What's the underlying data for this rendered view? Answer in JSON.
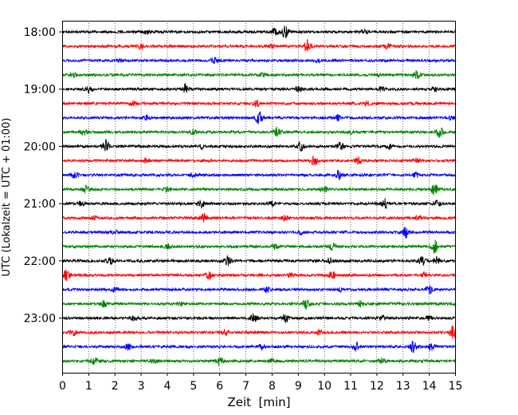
{
  "chart_data": {
    "type": "line",
    "title": "",
    "xlabel": "Zeit  [min]",
    "ylabel": "UTC (Lokalzeit = UTC + 01:00)",
    "xlim": [
      0,
      15
    ],
    "x_ticks": [
      "0",
      "1",
      "2",
      "3",
      "4",
      "5",
      "6",
      "7",
      "8",
      "9",
      "10",
      "11",
      "12",
      "13",
      "14",
      "15"
    ],
    "y_tick_labels": [
      "18:00",
      "19:00",
      "20:00",
      "21:00",
      "22:00",
      "23:00"
    ],
    "grid": "vertical dotted",
    "trace_colors": [
      "#000000",
      "#ff0000",
      "#0000ff",
      "#008000"
    ],
    "traces": [
      {
        "start": "18:00",
        "events": [
          [
            8.1,
            0.5
          ],
          [
            8.5,
            0.9
          ],
          [
            3.2,
            0.3
          ],
          [
            11.5,
            0.3
          ]
        ]
      },
      {
        "start": "18:15",
        "events": [
          [
            9.35,
            1.0
          ],
          [
            3.0,
            0.35
          ],
          [
            8.0,
            0.3
          ],
          [
            12.4,
            0.3
          ]
        ]
      },
      {
        "start": "18:30",
        "events": [
          [
            5.8,
            0.5
          ],
          [
            9.8,
            0.3
          ],
          [
            2.2,
            0.2
          ]
        ]
      },
      {
        "start": "18:45",
        "events": [
          [
            13.5,
            0.7
          ],
          [
            0.4,
            0.3
          ],
          [
            7.6,
            0.3
          ],
          [
            12.0,
            0.25
          ]
        ]
      },
      {
        "start": "19:00",
        "events": [
          [
            4.7,
            0.8
          ],
          [
            1.0,
            0.5
          ],
          [
            9.0,
            0.4
          ],
          [
            12.2,
            0.35
          ],
          [
            14.2,
            0.3
          ]
        ]
      },
      {
        "start": "19:15",
        "events": [
          [
            7.4,
            0.5
          ],
          [
            11.6,
            0.35
          ],
          [
            2.7,
            0.3
          ]
        ]
      },
      {
        "start": "19:30",
        "events": [
          [
            7.5,
            1.0
          ],
          [
            3.2,
            0.4
          ],
          [
            10.5,
            0.4
          ],
          [
            14.8,
            0.3
          ]
        ]
      },
      {
        "start": "19:45",
        "events": [
          [
            8.2,
            0.8
          ],
          [
            14.4,
            0.8
          ],
          [
            0.8,
            0.6
          ],
          [
            5.0,
            0.35
          ],
          [
            11.0,
            0.3
          ]
        ]
      },
      {
        "start": "20:00",
        "events": [
          [
            1.65,
            1.0
          ],
          [
            9.1,
            0.7
          ],
          [
            10.6,
            0.6
          ],
          [
            5.3,
            0.3
          ],
          [
            12.5,
            0.3
          ]
        ]
      },
      {
        "start": "20:15",
        "events": [
          [
            9.6,
            0.7
          ],
          [
            11.3,
            0.5
          ],
          [
            3.2,
            0.3
          ],
          [
            13.5,
            0.3
          ]
        ]
      },
      {
        "start": "20:30",
        "events": [
          [
            10.55,
            0.9
          ],
          [
            0.45,
            0.5
          ],
          [
            5.0,
            0.3
          ],
          [
            13.5,
            0.4
          ]
        ]
      },
      {
        "start": "20:45",
        "events": [
          [
            14.2,
            0.8
          ],
          [
            0.9,
            0.5
          ],
          [
            10.0,
            0.5
          ],
          [
            4.0,
            0.35
          ]
        ]
      },
      {
        "start": "21:00",
        "events": [
          [
            12.3,
            0.7
          ],
          [
            5.3,
            0.6
          ],
          [
            8.0,
            0.4
          ],
          [
            0.7,
            0.3
          ],
          [
            14.3,
            0.4
          ]
        ]
      },
      {
        "start": "21:15",
        "events": [
          [
            5.4,
            0.7
          ],
          [
            8.5,
            0.4
          ],
          [
            1.2,
            0.3
          ],
          [
            13.6,
            0.3
          ]
        ]
      },
      {
        "start": "21:30",
        "events": [
          [
            13.1,
            0.8
          ],
          [
            9.1,
            0.3
          ],
          [
            2.0,
            0.25
          ]
        ]
      },
      {
        "start": "21:45",
        "events": [
          [
            14.2,
            1.0
          ],
          [
            10.3,
            0.5
          ],
          [
            4.0,
            0.4
          ],
          [
            8.1,
            0.3
          ]
        ]
      },
      {
        "start": "22:00",
        "events": [
          [
            6.3,
            0.7
          ],
          [
            13.7,
            0.9
          ],
          [
            14.3,
            0.6
          ],
          [
            1.8,
            0.5
          ],
          [
            10.2,
            0.4
          ]
        ]
      },
      {
        "start": "22:15",
        "events": [
          [
            0.15,
            0.8
          ],
          [
            5.6,
            0.6
          ],
          [
            10.3,
            0.7
          ],
          [
            13.8,
            0.5
          ],
          [
            8.7,
            0.3
          ]
        ]
      },
      {
        "start": "22:30",
        "events": [
          [
            14.0,
            0.7
          ],
          [
            2.0,
            0.4
          ],
          [
            7.8,
            0.4
          ],
          [
            10.6,
            0.3
          ]
        ]
      },
      {
        "start": "22:45",
        "events": [
          [
            9.3,
            0.8
          ],
          [
            11.4,
            0.5
          ],
          [
            1.6,
            0.5
          ],
          [
            4.5,
            0.3
          ]
        ]
      },
      {
        "start": "23:00",
        "events": [
          [
            7.3,
            0.6
          ],
          [
            8.5,
            0.6
          ],
          [
            2.7,
            0.4
          ],
          [
            12.2,
            0.3
          ],
          [
            14.0,
            0.3
          ]
        ]
      },
      {
        "start": "23:15",
        "events": [
          [
            14.9,
            1.0
          ],
          [
            0.4,
            0.5
          ],
          [
            6.2,
            0.35
          ],
          [
            9.8,
            0.3
          ]
        ]
      },
      {
        "start": "23:30",
        "events": [
          [
            13.4,
            0.9
          ],
          [
            14.1,
            0.7
          ],
          [
            11.2,
            0.6
          ],
          [
            2.5,
            0.5
          ],
          [
            7.6,
            0.4
          ]
        ]
      },
      {
        "start": "23:45",
        "events": [
          [
            1.2,
            0.6
          ],
          [
            6.0,
            0.7
          ],
          [
            12.2,
            0.4
          ],
          [
            8.0,
            0.35
          ],
          [
            3.5,
            0.3
          ]
        ]
      }
    ]
  }
}
